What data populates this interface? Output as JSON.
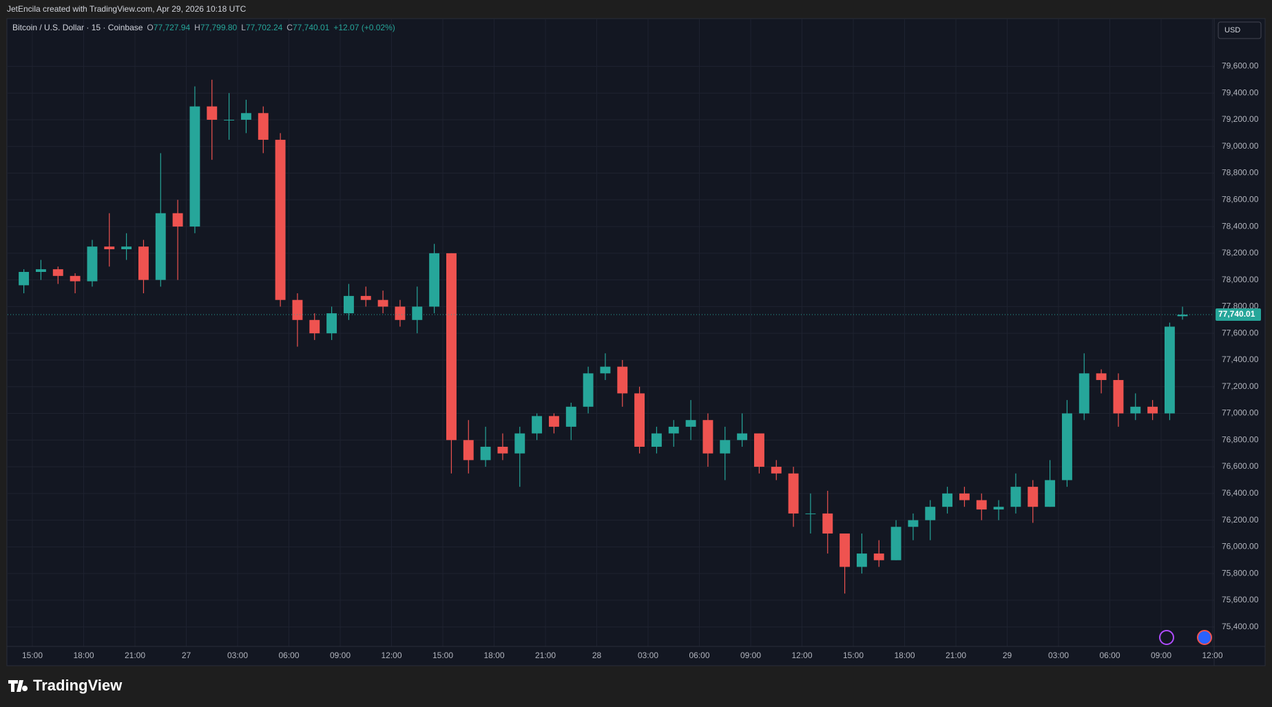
{
  "header": {
    "caption": "JetEncila created with TradingView.com, Apr 29, 2026 10:18 UTC",
    "brand": "TradingView"
  },
  "chart_data": {
    "type": "candlestick",
    "title": "Bitcoin / U.S. Dollar · 15 · Coinbase",
    "ohlc_legend": {
      "o_label": "O",
      "o": "77,727.94",
      "h_label": "H",
      "h": "77,799.80",
      "l_label": "L",
      "l": "77,702.24",
      "c_label": "C",
      "c": "77,740.01",
      "change": "+12.07 (+0.02%)"
    },
    "currency": "USD",
    "up_color": "#26a69a",
    "down_color": "#ef5350",
    "grid": true,
    "x": [
      14.5,
      15.5,
      16.5,
      17.5,
      18.5,
      19.5,
      20.5,
      21.5,
      22.5,
      23.5,
      24.5,
      25.5,
      26.5,
      27.5,
      28.5,
      29.5,
      30.5,
      31.5,
      32.5,
      33.5,
      34.5,
      35.5,
      36.5,
      37.5,
      38.5,
      39.5,
      40.5,
      41.5,
      42.5,
      43.5,
      44.5,
      45.5,
      46.5,
      47.5,
      48.5,
      49.5,
      50.5,
      51.5,
      52.5,
      53.5,
      54.5,
      55.5,
      56.5,
      57.5,
      58.5,
      59.5,
      60.5,
      61.5,
      62.5,
      63.5,
      64.5,
      65.5,
      66.5,
      67.5,
      68.5,
      69.5,
      70.5,
      71.5,
      72.5,
      73.5,
      74.5,
      75.5,
      76.5,
      77.5,
      78.5,
      79.5,
      80.5,
      81.5,
      82.25
    ],
    "open": [
      77960,
      78060,
      78080,
      78030,
      77990,
      78250,
      78230,
      78250,
      78000,
      78500,
      78400,
      79300,
      79200,
      79200,
      79250,
      79050,
      77850,
      77700,
      77600,
      77750,
      77880,
      77850,
      77800,
      77700,
      77800,
      78200,
      76800,
      76650,
      76750,
      76700,
      76850,
      76980,
      76900,
      77050,
      77300,
      77350,
      77150,
      76750,
      76850,
      76900,
      76950,
      76700,
      76800,
      76850,
      76600,
      76550,
      76250,
      76250,
      76100,
      75850,
      75950,
      75900,
      76150,
      76200,
      76300,
      76400,
      76350,
      76280,
      76300,
      76450,
      76300,
      76500,
      77000,
      77300,
      77250,
      77000,
      77050,
      77000,
      77727.94
    ],
    "high": [
      78080,
      78150,
      78100,
      78050,
      78300,
      78500,
      78350,
      78300,
      78950,
      78600,
      79450,
      79500,
      79400,
      79350,
      79300,
      79100,
      77900,
      77750,
      77800,
      77970,
      77950,
      77920,
      77850,
      77950,
      78270,
      78200,
      76950,
      76900,
      76850,
      76900,
      77000,
      77000,
      77080,
      77350,
      77450,
      77400,
      77200,
      76900,
      76950,
      77100,
      77000,
      76900,
      77000,
      76850,
      76650,
      76600,
      76400,
      76420,
      76100,
      76100,
      76050,
      76200,
      76250,
      76350,
      76450,
      76450,
      76400,
      76350,
      76550,
      76500,
      76650,
      77100,
      77450,
      77330,
      77300,
      77150,
      77100,
      77680,
      77799.8
    ],
    "low": [
      77900,
      78000,
      77970,
      77900,
      77950,
      78100,
      78150,
      77900,
      77950,
      78000,
      78350,
      78900,
      79050,
      79100,
      78950,
      77800,
      77500,
      77550,
      77550,
      77700,
      77800,
      77750,
      77650,
      77600,
      77750,
      76550,
      76550,
      76600,
      76650,
      76450,
      76800,
      76850,
      76800,
      77000,
      77250,
      77050,
      76700,
      76700,
      76750,
      76800,
      76600,
      76500,
      76750,
      76550,
      76500,
      76150,
      76100,
      75950,
      75650,
      75800,
      75850,
      75900,
      76050,
      76050,
      76250,
      76300,
      76200,
      76200,
      76250,
      76180,
      76300,
      76450,
      76950,
      77150,
      76900,
      76950,
      76950,
      76950,
      77702.24
    ],
    "close": [
      78060,
      78080,
      78030,
      77990,
      78250,
      78230,
      78250,
      78000,
      78500,
      78400,
      79300,
      79200,
      79200,
      79250,
      79050,
      77850,
      77700,
      77600,
      77750,
      77880,
      77850,
      77800,
      77700,
      77800,
      78200,
      76800,
      76650,
      76750,
      76700,
      76850,
      76980,
      76900,
      77050,
      77300,
      77350,
      77150,
      76750,
      76850,
      76900,
      76950,
      76700,
      76800,
      76850,
      76600,
      76550,
      76250,
      76250,
      76100,
      75850,
      75950,
      75900,
      76150,
      76200,
      76300,
      76400,
      76350,
      76280,
      76300,
      76450,
      76300,
      76500,
      77000,
      77300,
      77250,
      77000,
      77050,
      77000,
      77650,
      77740.01
    ],
    "last_price": {
      "value": 77740.01,
      "label": "77,740.01"
    },
    "xlim": [
      13.55,
      84.1
    ],
    "xticks": [
      {
        "value": 15,
        "label": "15:00"
      },
      {
        "value": 18,
        "label": "18:00"
      },
      {
        "value": 21,
        "label": "21:00"
      },
      {
        "value": 24,
        "label": "27"
      },
      {
        "value": 27,
        "label": "03:00"
      },
      {
        "value": 30,
        "label": "06:00"
      },
      {
        "value": 33,
        "label": "09:00"
      },
      {
        "value": 36,
        "label": "12:00"
      },
      {
        "value": 39,
        "label": "15:00"
      },
      {
        "value": 42,
        "label": "18:00"
      },
      {
        "value": 45,
        "label": "21:00"
      },
      {
        "value": 48,
        "label": "28"
      },
      {
        "value": 51,
        "label": "03:00"
      },
      {
        "value": 54,
        "label": "06:00"
      },
      {
        "value": 57,
        "label": "09:00"
      },
      {
        "value": 60,
        "label": "12:00"
      },
      {
        "value": 63,
        "label": "15:00"
      },
      {
        "value": 66,
        "label": "18:00"
      },
      {
        "value": 69,
        "label": "21:00"
      },
      {
        "value": 72,
        "label": "29"
      },
      {
        "value": 75,
        "label": "03:00"
      },
      {
        "value": 78,
        "label": "06:00"
      },
      {
        "value": 81,
        "label": "09:00"
      },
      {
        "value": 84,
        "label": "12:00"
      }
    ],
    "ylim": [
      75254,
      79953
    ],
    "yticks": [
      {
        "value": 75400,
        "label": "75,400.00"
      },
      {
        "value": 75600,
        "label": "75,600.00"
      },
      {
        "value": 75800,
        "label": "75,800.00"
      },
      {
        "value": 76000,
        "label": "76,000.00"
      },
      {
        "value": 76200,
        "label": "76,200.00"
      },
      {
        "value": 76400,
        "label": "76,400.00"
      },
      {
        "value": 76600,
        "label": "76,600.00"
      },
      {
        "value": 76800,
        "label": "76,800.00"
      },
      {
        "value": 77000,
        "label": "77,000.00"
      },
      {
        "value": 77200,
        "label": "77,200.00"
      },
      {
        "value": 77400,
        "label": "77,400.00"
      },
      {
        "value": 77600,
        "label": "77,600.00"
      },
      {
        "value": 77800,
        "label": "77,800.00"
      },
      {
        "value": 78000,
        "label": "78,000.00"
      },
      {
        "value": 78200,
        "label": "78,200.00"
      },
      {
        "value": 78400,
        "label": "78,400.00"
      },
      {
        "value": 78600,
        "label": "78,600.00"
      },
      {
        "value": 78800,
        "label": "78,800.00"
      },
      {
        "value": 79000,
        "label": "79,000.00"
      },
      {
        "value": 79200,
        "label": "79,200.00"
      },
      {
        "value": 79400,
        "label": "79,400.00"
      },
      {
        "value": 79600,
        "label": "79,600.00"
      }
    ]
  }
}
